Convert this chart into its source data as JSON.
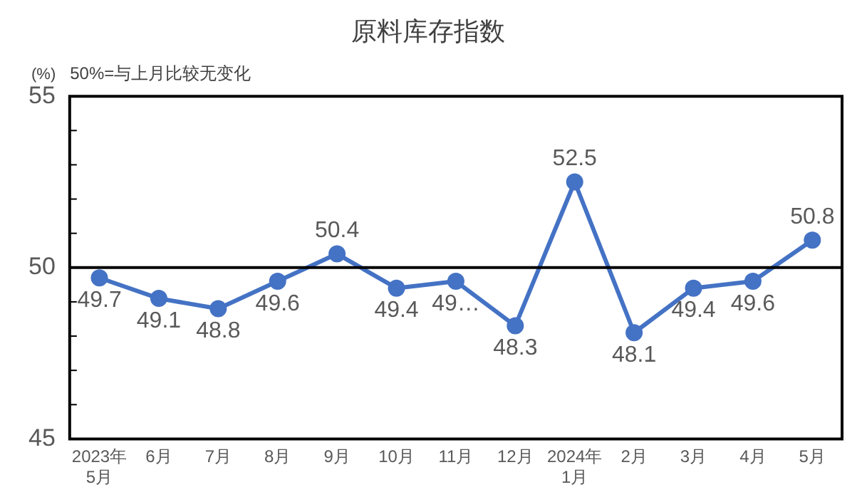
{
  "chart_data": {
    "type": "line",
    "title": "原料库存指数",
    "ylabel": "(%)",
    "annotations": [
      "50%=与上月比较无变化"
    ],
    "categories": [
      "2023年\n5月",
      "6月",
      "7月",
      "8月",
      "9月",
      "10月",
      "11月",
      "12月",
      "2024年\n1月",
      "2月",
      "3月",
      "4月",
      "5月"
    ],
    "series": [
      {
        "color": "#4472c4",
        "values": [
          49.7,
          49.1,
          48.8,
          49.6,
          50.4,
          49.4,
          49.6,
          48.3,
          52.5,
          48.1,
          49.4,
          49.6,
          50.8
        ],
        "value_labels": [
          "49.7",
          "49.1",
          "48.8",
          "49.6",
          "50.4",
          "49.4",
          "49…",
          "48.3",
          "52.5",
          "48.1",
          "49.4",
          "49.6",
          "50.8"
        ]
      }
    ],
    "ylim": [
      45,
      55
    ],
    "yticks": [
      45,
      {
        "value": 46,
        "label": null
      },
      {
        "value": 47,
        "label": null
      },
      {
        "value": 48,
        "label": null
      },
      {
        "value": 49,
        "label": null
      },
      50,
      {
        "value": 51,
        "label": null
      },
      {
        "value": 52,
        "label": null
      },
      {
        "value": 53,
        "label": null
      },
      {
        "value": 54,
        "label": null
      },
      55
    ],
    "ref_lines": [
      {
        "axis": "y",
        "value": 50,
        "color": "#000000"
      }
    ],
    "grid": false,
    "legend": false,
    "marker": "circle",
    "line_style": "solid"
  }
}
